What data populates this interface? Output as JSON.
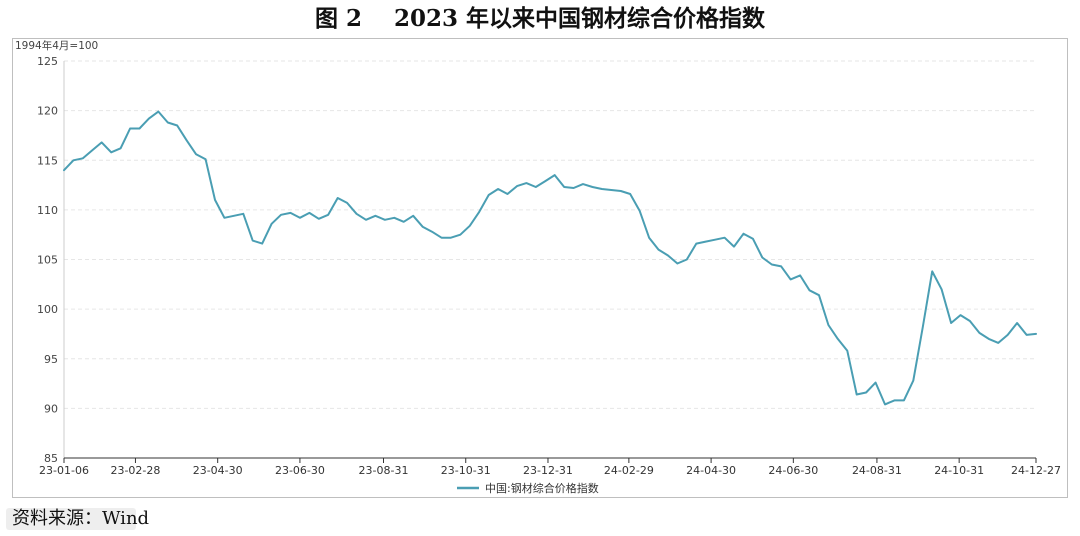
{
  "figure": {
    "title": "图 2    2023 年以来中国钢材综合价格指数",
    "source": "资料来源：Wind"
  },
  "chart_data": {
    "type": "line",
    "title": "图 2    2023 年以来中国钢材综合价格指数",
    "unit_label": "1994年4月=100",
    "xlabel": "",
    "ylabel": "",
    "ylim": [
      85,
      125
    ],
    "y_ticks": [
      85,
      90,
      95,
      100,
      105,
      110,
      115,
      120,
      125
    ],
    "x_ticks": [
      "23-01-06",
      "23-02-28",
      "23-04-30",
      "23-06-30",
      "23-08-31",
      "23-10-31",
      "23-12-31",
      "24-02-29",
      "24-04-30",
      "24-06-30",
      "24-08-31",
      "24-10-31",
      "24-12-27"
    ],
    "grid": true,
    "legend_position": "bottom-center",
    "series": [
      {
        "name": "中国:钢材综合价格指数",
        "color": "#4a9eb3",
        "x": [
          "23-01-06",
          "23-01-13",
          "23-01-20",
          "23-01-27",
          "23-02-03",
          "23-02-10",
          "23-02-17",
          "23-02-24",
          "23-03-03",
          "23-03-10",
          "23-03-17",
          "23-03-24",
          "23-03-31",
          "23-04-07",
          "23-04-14",
          "23-04-21",
          "23-04-28",
          "23-05-05",
          "23-05-12",
          "23-05-19",
          "23-05-26",
          "23-06-02",
          "23-06-09",
          "23-06-16",
          "23-06-23",
          "23-06-30",
          "23-07-07",
          "23-07-14",
          "23-07-21",
          "23-07-28",
          "23-08-04",
          "23-08-11",
          "23-08-18",
          "23-08-25",
          "23-09-01",
          "23-09-08",
          "23-09-15",
          "23-09-22",
          "23-09-29",
          "23-10-06",
          "23-10-13",
          "23-10-20",
          "23-10-27",
          "23-11-03",
          "23-11-10",
          "23-11-17",
          "23-11-24",
          "23-12-01",
          "23-12-08",
          "23-12-15",
          "23-12-22",
          "23-12-29",
          "24-01-05",
          "24-01-12",
          "24-01-19",
          "24-01-26",
          "24-02-02",
          "24-02-09",
          "24-02-16",
          "24-02-23",
          "24-03-01",
          "24-03-08",
          "24-03-15",
          "24-03-22",
          "24-03-29",
          "24-04-05",
          "24-04-12",
          "24-04-19",
          "24-04-26",
          "24-05-03",
          "24-05-10",
          "24-05-17",
          "24-05-24",
          "24-05-31",
          "24-06-07",
          "24-06-14",
          "24-06-21",
          "24-06-28",
          "24-07-05",
          "24-07-12",
          "24-07-19",
          "24-07-26",
          "24-08-02",
          "24-08-09",
          "24-08-16",
          "24-08-23",
          "24-08-30",
          "24-09-06",
          "24-09-13",
          "24-09-20",
          "24-09-27",
          "24-10-04",
          "24-10-11",
          "24-10-18",
          "24-10-25",
          "24-11-01",
          "24-11-08",
          "24-11-15",
          "24-11-22",
          "24-11-29",
          "24-12-06",
          "24-12-13",
          "24-12-20",
          "24-12-27"
        ],
        "values": [
          114.0,
          115.0,
          115.2,
          116.0,
          116.8,
          115.8,
          116.2,
          118.2,
          118.2,
          119.2,
          119.9,
          118.8,
          118.5,
          117.0,
          115.6,
          115.1,
          111.0,
          109.2,
          109.4,
          109.6,
          106.9,
          106.6,
          108.6,
          109.5,
          109.7,
          109.2,
          109.7,
          109.1,
          109.5,
          111.2,
          110.7,
          109.6,
          109.0,
          109.4,
          109.0,
          109.2,
          108.8,
          109.4,
          108.3,
          107.8,
          107.2,
          107.2,
          107.5,
          108.4,
          109.8,
          111.5,
          112.1,
          111.6,
          112.4,
          112.7,
          112.3,
          112.9,
          113.5,
          112.3,
          112.2,
          112.6,
          112.3,
          112.1,
          112.0,
          111.9,
          111.6,
          109.9,
          107.2,
          106.0,
          105.4,
          104.6,
          105.0,
          106.6,
          106.8,
          107.0,
          107.2,
          106.3,
          107.6,
          107.1,
          105.2,
          104.5,
          104.3,
          103.0,
          103.4,
          101.9,
          101.4,
          98.4,
          97.0,
          95.8,
          91.4,
          91.6,
          92.6,
          90.4,
          90.8,
          90.8,
          92.8,
          98.2,
          103.8,
          102.0,
          98.6,
          99.4,
          98.8,
          97.6,
          97.0,
          96.6,
          97.4,
          98.6,
          97.4,
          97.5
        ]
      }
    ]
  }
}
